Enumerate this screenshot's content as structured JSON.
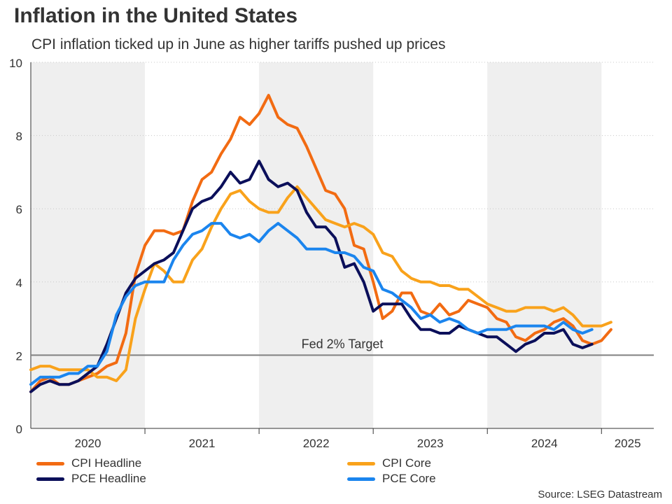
{
  "header": {
    "title": "Inflation in the United States",
    "subtitle": "CPI inflation ticked up in June as higher tariffs pushed up prices"
  },
  "source": "Source: LSEG Datastream",
  "colors": {
    "cpi_headline": "#f26b12",
    "cpi_core": "#f9a21b",
    "pce_headline": "#0b0f5a",
    "pce_core": "#1b85ee",
    "shade": "#efefef",
    "target_line": "#808080"
  },
  "chart_data": {
    "type": "line",
    "x_start": "2020-01",
    "x_end": "2025-06",
    "x_tick_labels": [
      "2020",
      "2021",
      "2022",
      "2023",
      "2024",
      "2025"
    ],
    "ylim": [
      0,
      10
    ],
    "y_ticks": [
      0,
      2,
      4,
      6,
      8,
      10
    ],
    "y_tick_labels": [
      "0",
      "2",
      "4",
      "6",
      "8",
      "10"
    ],
    "grid": "horizontal dotted",
    "alternating_year_shading": true,
    "annotations": [
      {
        "type": "hline",
        "y": 2,
        "label": "Fed 2% Target"
      }
    ],
    "legend": {
      "position": "bottom"
    },
    "series": [
      {
        "name": "CPI Headline",
        "color": "#f26b12",
        "values": [
          1.0,
          1.3,
          1.4,
          1.2,
          1.2,
          1.3,
          1.4,
          1.5,
          1.7,
          1.8,
          2.6,
          4.2,
          5.0,
          5.4,
          5.4,
          5.3,
          5.4,
          6.2,
          6.8,
          7.0,
          7.5,
          7.9,
          8.5,
          8.3,
          8.6,
          9.1,
          8.5,
          8.3,
          8.2,
          7.7,
          7.1,
          6.5,
          6.4,
          6.0,
          5.0,
          4.9,
          4.0,
          3.0,
          3.2,
          3.7,
          3.7,
          3.2,
          3.1,
          3.4,
          3.1,
          3.2,
          3.5,
          3.4,
          3.3,
          3.0,
          2.9,
          2.5,
          2.4,
          2.6,
          2.7,
          2.9,
          3.0,
          2.8,
          2.4,
          2.3,
          2.4,
          2.7
        ]
      },
      {
        "name": "CPI Core",
        "color": "#f9a21b",
        "values": [
          1.6,
          1.7,
          1.7,
          1.6,
          1.6,
          1.6,
          1.6,
          1.4,
          1.4,
          1.3,
          1.6,
          3.0,
          3.8,
          4.5,
          4.3,
          4.0,
          4.0,
          4.6,
          4.9,
          5.5,
          6.0,
          6.4,
          6.5,
          6.2,
          6.0,
          5.9,
          5.9,
          6.3,
          6.6,
          6.3,
          6.0,
          5.7,
          5.6,
          5.5,
          5.6,
          5.5,
          5.3,
          4.8,
          4.7,
          4.3,
          4.1,
          4.0,
          4.0,
          3.9,
          3.9,
          3.8,
          3.8,
          3.6,
          3.4,
          3.3,
          3.2,
          3.2,
          3.3,
          3.3,
          3.3,
          3.2,
          3.3,
          3.1,
          2.8,
          2.8,
          2.8,
          2.9
        ]
      },
      {
        "name": "PCE Headline",
        "color": "#0b0f5a",
        "values": [
          1.0,
          1.2,
          1.3,
          1.2,
          1.2,
          1.3,
          1.5,
          1.7,
          2.3,
          3.0,
          3.7,
          4.1,
          4.3,
          4.5,
          4.6,
          4.8,
          5.4,
          6.0,
          6.2,
          6.3,
          6.6,
          7.0,
          6.7,
          6.8,
          7.3,
          6.8,
          6.6,
          6.7,
          6.5,
          5.9,
          5.5,
          5.5,
          5.2,
          4.4,
          4.5,
          4.0,
          3.2,
          3.4,
          3.4,
          3.4,
          3.0,
          2.7,
          2.7,
          2.6,
          2.6,
          2.8,
          2.7,
          2.6,
          2.5,
          2.5,
          2.3,
          2.1,
          2.3,
          2.4,
          2.6,
          2.6,
          2.7,
          2.3,
          2.2,
          2.3
        ]
      },
      {
        "name": "PCE Core",
        "color": "#1b85ee",
        "values": [
          1.2,
          1.4,
          1.4,
          1.4,
          1.5,
          1.5,
          1.7,
          1.7,
          2.1,
          3.1,
          3.6,
          3.9,
          4.0,
          4.0,
          4.0,
          4.6,
          5.0,
          5.3,
          5.4,
          5.6,
          5.6,
          5.3,
          5.2,
          5.3,
          5.1,
          5.4,
          5.6,
          5.4,
          5.2,
          4.9,
          4.9,
          4.9,
          4.8,
          4.8,
          4.7,
          4.4,
          4.3,
          3.8,
          3.7,
          3.5,
          3.3,
          3.0,
          3.1,
          2.9,
          3.0,
          2.9,
          2.7,
          2.6,
          2.7,
          2.7,
          2.7,
          2.8,
          2.8,
          2.8,
          2.8,
          2.7,
          2.9,
          2.7,
          2.6,
          2.7
        ]
      }
    ]
  }
}
